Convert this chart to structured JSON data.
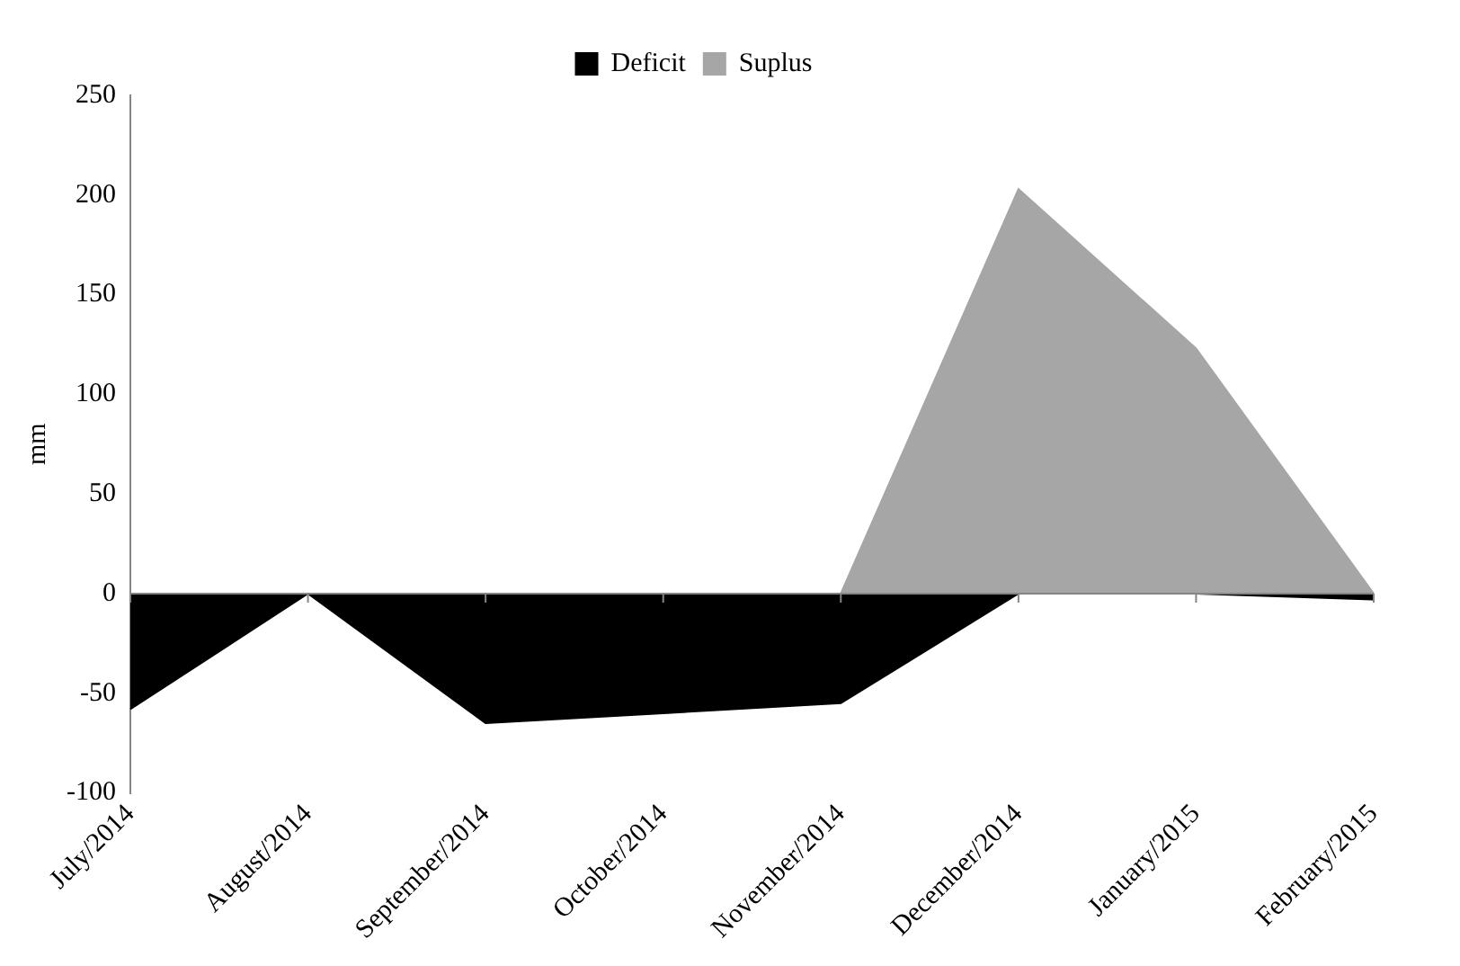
{
  "chart_data": {
    "type": "area",
    "ylabel": "mm",
    "categories": [
      "July/2014",
      "August/2014",
      "September/2014",
      "October/2014",
      "November/2014",
      "December/2014",
      "January/2015",
      "February/2015"
    ],
    "series": [
      {
        "name": "Deficit",
        "color": "#000000",
        "values": [
          -58,
          0,
          -65,
          -60,
          -55,
          0,
          0,
          -3
        ]
      },
      {
        "name": "Suplus",
        "color": "#a6a6a6",
        "values": [
          0,
          0,
          0,
          0,
          0,
          203,
          123,
          0
        ]
      }
    ],
    "ylim": [
      -100,
      250
    ],
    "yticks": [
      -100,
      -50,
      0,
      50,
      100,
      150,
      200,
      250
    ],
    "legend": "top"
  }
}
